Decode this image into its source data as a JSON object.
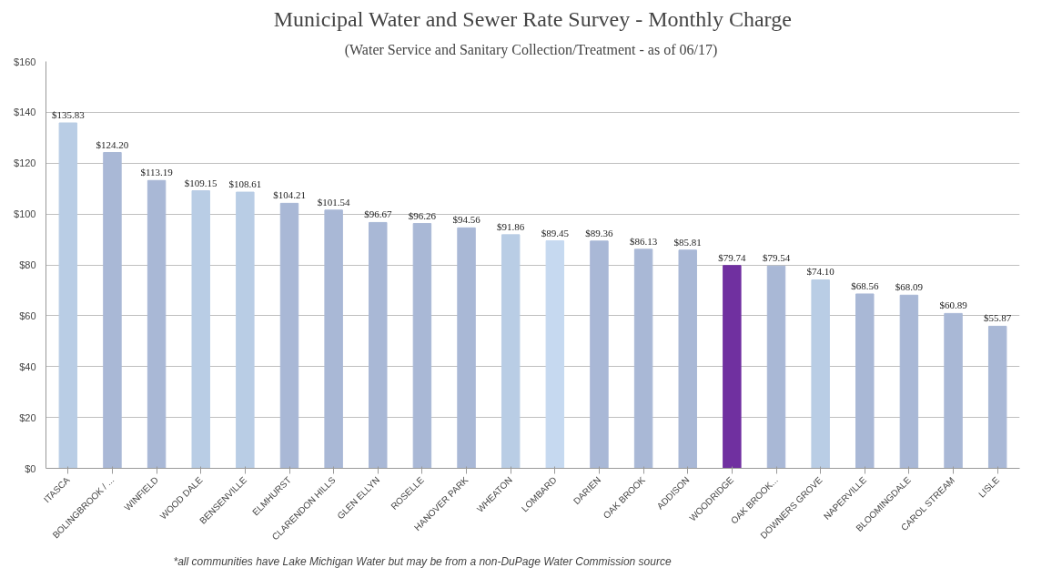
{
  "chart_data": {
    "type": "bar",
    "title": "Municipal Water and Sewer Rate Survey - Monthly Charge",
    "subtitle": "(Water Service and Sanitary Collection/Treatment  - as of 06/17)",
    "categories": [
      "ITASCA",
      "BOLINGBROOK / ...",
      "WINFIELD",
      "WOOD DALE",
      "BENSENVILLE",
      "ELMHURST",
      "CLARENDON HILLS",
      "GLEN ELLYN",
      "ROSELLE",
      "HANOVER PARK",
      "WHEATON",
      "LOMBARD",
      "DARIEN",
      "OAK BROOK",
      "ADDISON",
      "WOODRIDGE",
      "OAK BROOK...",
      "DOWNERS GROVE",
      "NAPERVILLE",
      "BLOOMINGDALE",
      "CAROL STREAM",
      "LISLE"
    ],
    "values": [
      135.83,
      124.2,
      113.19,
      109.15,
      108.61,
      104.21,
      101.54,
      96.67,
      96.26,
      94.56,
      91.86,
      89.45,
      89.36,
      86.13,
      85.81,
      79.74,
      79.54,
      74.1,
      68.56,
      68.09,
      60.89,
      55.87
    ],
    "value_labels": [
      "$135.83",
      "$124.20",
      "$113.19",
      "$109.15",
      "$108.61",
      "$104.21",
      "$101.54",
      "$96.67",
      "$96.26",
      "$94.56",
      "$91.86",
      "$89.45",
      "$89.36",
      "$86.13",
      "$85.81",
      "$79.74",
      "$79.54",
      "$74.10",
      "$68.56",
      "$68.09",
      "$60.89",
      "$55.87"
    ],
    "colors": [
      "#b9cde5",
      "#a9b8d6",
      "#a9b8d6",
      "#b9cde5",
      "#b9cde5",
      "#a9b8d6",
      "#a9b8d6",
      "#a9b8d6",
      "#a9b8d6",
      "#a9b8d6",
      "#b9cde5",
      "#c6d9f0",
      "#a9b8d6",
      "#a9b8d6",
      "#a9b8d6",
      "#7030a0",
      "#a9b8d6",
      "#b9cde5",
      "#a9b8d6",
      "#a9b8d6",
      "#a9b8d6",
      "#a9b8d6"
    ],
    "ylim": [
      0,
      160
    ],
    "yticks": [
      {
        "value": 0,
        "label": "$0"
      },
      {
        "value": 20,
        "label": "$20"
      },
      {
        "value": 40,
        "label": "$40"
      },
      {
        "value": 60,
        "label": "$60"
      },
      {
        "value": 80,
        "label": "$80"
      },
      {
        "value": 100,
        "label": "$100"
      },
      {
        "value": 120,
        "label": "$120"
      },
      {
        "value": 140,
        "label": "$140"
      },
      {
        "value": 160,
        "label": "$160"
      }
    ],
    "grid": "y",
    "annotations": [
      "*all communities have Lake Michigan Water but may be from a non-DuPage Water Commission source"
    ]
  }
}
